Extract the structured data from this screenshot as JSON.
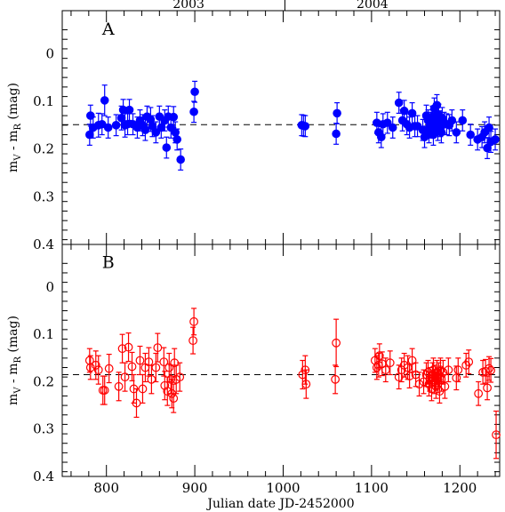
{
  "chart_data": {
    "type": "scatter",
    "xlabel": "Julian date JD-2452000",
    "x_ticks": [
      800,
      900,
      1000,
      1100,
      1200
    ],
    "xlim": [
      750,
      1245
    ],
    "year_labels": [
      {
        "label": "2003",
        "x": 893
      },
      {
        "label": "2004",
        "x": 1101
      }
    ],
    "year_separator_x": 1002,
    "panels": [
      {
        "name": "A",
        "ylabel": "m_V - m_R (mag)",
        "ylabel_main": "m",
        "ylabel_sub1": "V",
        "ylabel_mid": " - m",
        "ylabel_sub2": "R",
        "ylabel_units": " (mag)",
        "ylim": [
          0.4,
          -0.09
        ],
        "y_ticks": [
          "0",
          "0.1",
          "0.2",
          "0.3",
          "0.4"
        ],
        "y_tick_values": [
          0,
          0.1,
          0.2,
          0.3,
          0.4
        ],
        "mean": 0.149,
        "marker": "filled-circle",
        "color": "#0000ff",
        "points": [
          [
            781,
            0.17,
            0.022
          ],
          [
            782,
            0.13,
            0.022
          ],
          [
            785,
            0.155,
            0.022
          ],
          [
            791,
            0.15,
            0.025
          ],
          [
            795,
            0.148,
            0.022
          ],
          [
            798,
            0.098,
            0.032
          ],
          [
            802,
            0.155,
            0.022
          ],
          [
            811,
            0.15,
            0.022
          ],
          [
            817,
            0.135,
            0.025
          ],
          [
            819,
            0.118,
            0.022
          ],
          [
            821,
            0.15,
            0.025
          ],
          [
            824,
            0.148,
            0.022
          ],
          [
            826,
            0.118,
            0.022
          ],
          [
            830,
            0.148,
            0.022
          ],
          [
            835,
            0.155,
            0.022
          ],
          [
            838,
            0.14,
            0.022
          ],
          [
            841,
            0.15,
            0.022
          ],
          [
            844,
            0.16,
            0.022
          ],
          [
            846,
            0.132,
            0.022
          ],
          [
            850,
            0.138,
            0.025
          ],
          [
            852,
            0.152,
            0.022
          ],
          [
            856,
            0.165,
            0.022
          ],
          [
            860,
            0.132,
            0.022
          ],
          [
            862,
            0.155,
            0.022
          ],
          [
            866,
            0.14,
            0.022
          ],
          [
            868,
            0.197,
            0.022
          ],
          [
            870,
            0.132,
            0.022
          ],
          [
            873,
            0.155,
            0.022
          ],
          [
            876,
            0.133,
            0.022
          ],
          [
            878,
            0.165,
            0.022
          ],
          [
            880,
            0.18,
            0.022
          ],
          [
            884,
            0.222,
            0.022
          ],
          [
            899,
            0.122,
            0.022
          ],
          [
            900,
            0.08,
            0.022
          ],
          [
            1021,
            0.15,
            0.022
          ],
          [
            1023,
            0.151,
            0.022
          ],
          [
            1025,
            0.152,
            0.022
          ],
          [
            1060,
            0.168,
            0.022
          ],
          [
            1061,
            0.125,
            0.022
          ],
          [
            1106,
            0.145,
            0.022
          ],
          [
            1108,
            0.165,
            0.022
          ],
          [
            1111,
            0.175,
            0.022
          ],
          [
            1113,
            0.148,
            0.022
          ],
          [
            1118,
            0.145,
            0.022
          ],
          [
            1124,
            0.155,
            0.022
          ],
          [
            1131,
            0.103,
            0.022
          ],
          [
            1135,
            0.14,
            0.022
          ],
          [
            1137,
            0.12,
            0.022
          ],
          [
            1140,
            0.148,
            0.022
          ],
          [
            1143,
            0.155,
            0.022
          ],
          [
            1146,
            0.125,
            0.022
          ],
          [
            1149,
            0.152,
            0.022
          ],
          [
            1152,
            0.152,
            0.022
          ],
          [
            1158,
            0.16,
            0.022
          ],
          [
            1160,
            0.175,
            0.022
          ],
          [
            1162,
            0.13,
            0.022
          ],
          [
            1164,
            0.14,
            0.022
          ],
          [
            1165,
            0.165,
            0.022
          ],
          [
            1166,
            0.155,
            0.022
          ],
          [
            1167,
            0.145,
            0.022
          ],
          [
            1168,
            0.15,
            0.022
          ],
          [
            1169,
            0.132,
            0.022
          ],
          [
            1170,
            0.17,
            0.022
          ],
          [
            1171,
            0.115,
            0.022
          ],
          [
            1172,
            0.138,
            0.022
          ],
          [
            1173,
            0.15,
            0.022
          ],
          [
            1174,
            0.108,
            0.022
          ],
          [
            1175,
            0.16,
            0.022
          ],
          [
            1176,
            0.128,
            0.022
          ],
          [
            1177,
            0.142,
            0.022
          ],
          [
            1178,
            0.152,
            0.022
          ],
          [
            1179,
            0.165,
            0.022
          ],
          [
            1180,
            0.135,
            0.022
          ],
          [
            1182,
            0.145,
            0.022
          ],
          [
            1185,
            0.148,
            0.022
          ],
          [
            1188,
            0.15,
            0.022
          ],
          [
            1191,
            0.14,
            0.022
          ],
          [
            1196,
            0.165,
            0.022
          ],
          [
            1203,
            0.14,
            0.022
          ],
          [
            1212,
            0.17,
            0.022
          ],
          [
            1220,
            0.18,
            0.022
          ],
          [
            1225,
            0.175,
            0.022
          ],
          [
            1228,
            0.165,
            0.022
          ],
          [
            1231,
            0.198,
            0.022
          ],
          [
            1233,
            0.155,
            0.022
          ],
          [
            1235,
            0.185,
            0.022
          ],
          [
            1240,
            0.18,
            0.022
          ]
        ]
      },
      {
        "name": "B",
        "ylabel": "m_V - m_R (mag)",
        "ylabel_main": "m",
        "ylabel_sub1": "V",
        "ylabel_mid": " - m",
        "ylabel_sub2": "R",
        "ylabel_units": " (mag)",
        "ylim": [
          0.4,
          -0.09
        ],
        "y_ticks": [
          "0",
          "0.1",
          "0.2",
          "0.3",
          "0.4"
        ],
        "y_tick_values": [
          0,
          0.1,
          0.2,
          0.3,
          0.4
        ],
        "mean": 0.185,
        "marker": "open-circle",
        "color": "#ff0000",
        "points": [
          [
            781,
            0.155,
            0.025
          ],
          [
            782,
            0.17,
            0.025
          ],
          [
            788,
            0.165,
            0.03
          ],
          [
            791,
            0.175,
            0.03
          ],
          [
            796,
            0.218,
            0.03
          ],
          [
            798,
            0.218,
            0.03
          ],
          [
            803,
            0.172,
            0.03
          ],
          [
            814,
            0.21,
            0.03
          ],
          [
            818,
            0.13,
            0.03
          ],
          [
            821,
            0.19,
            0.03
          ],
          [
            825,
            0.127,
            0.03
          ],
          [
            829,
            0.168,
            0.03
          ],
          [
            831,
            0.215,
            0.03
          ],
          [
            834,
            0.245,
            0.03
          ],
          [
            838,
            0.155,
            0.03
          ],
          [
            841,
            0.215,
            0.03
          ],
          [
            844,
            0.17,
            0.03
          ],
          [
            848,
            0.158,
            0.03
          ],
          [
            851,
            0.195,
            0.03
          ],
          [
            856,
            0.17,
            0.03
          ],
          [
            858,
            0.128,
            0.03
          ],
          [
            865,
            0.158,
            0.03
          ],
          [
            866,
            0.208,
            0.03
          ],
          [
            869,
            0.22,
            0.03
          ],
          [
            871,
            0.17,
            0.03
          ],
          [
            873,
            0.195,
            0.03
          ],
          [
            874,
            0.225,
            0.03
          ],
          [
            876,
            0.235,
            0.03
          ],
          [
            877,
            0.16,
            0.03
          ],
          [
            879,
            0.195,
            0.03
          ],
          [
            883,
            0.19,
            0.03
          ],
          [
            898,
            0.113,
            0.028
          ],
          [
            899,
            0.073,
            0.028
          ],
          [
            1022,
            0.185,
            0.03
          ],
          [
            1025,
            0.175,
            0.03
          ],
          [
            1026,
            0.205,
            0.03
          ],
          [
            1059,
            0.195,
            0.03
          ],
          [
            1060,
            0.118,
            0.05
          ],
          [
            1104,
            0.155,
            0.025
          ],
          [
            1106,
            0.17,
            0.025
          ],
          [
            1108,
            0.165,
            0.025
          ],
          [
            1109,
            0.145,
            0.025
          ],
          [
            1112,
            0.162,
            0.025
          ],
          [
            1116,
            0.175,
            0.025
          ],
          [
            1121,
            0.16,
            0.025
          ],
          [
            1131,
            0.19,
            0.025
          ],
          [
            1134,
            0.175,
            0.025
          ],
          [
            1137,
            0.165,
            0.025
          ],
          [
            1141,
            0.17,
            0.025
          ],
          [
            1143,
            0.188,
            0.025
          ],
          [
            1146,
            0.155,
            0.025
          ],
          [
            1150,
            0.185,
            0.025
          ],
          [
            1154,
            0.205,
            0.025
          ],
          [
            1159,
            0.2,
            0.025
          ],
          [
            1162,
            0.185,
            0.025
          ],
          [
            1164,
            0.18,
            0.025
          ],
          [
            1165,
            0.205,
            0.025
          ],
          [
            1166,
            0.195,
            0.025
          ],
          [
            1168,
            0.215,
            0.025
          ],
          [
            1169,
            0.185,
            0.025
          ],
          [
            1170,
            0.175,
            0.025
          ],
          [
            1171,
            0.2,
            0.025
          ],
          [
            1172,
            0.19,
            0.025
          ],
          [
            1173,
            0.21,
            0.025
          ],
          [
            1174,
            0.18,
            0.025
          ],
          [
            1175,
            0.198,
            0.025
          ],
          [
            1176,
            0.185,
            0.025
          ],
          [
            1177,
            0.22,
            0.025
          ],
          [
            1178,
            0.175,
            0.025
          ],
          [
            1179,
            0.195,
            0.025
          ],
          [
            1181,
            0.18,
            0.025
          ],
          [
            1183,
            0.21,
            0.025
          ],
          [
            1187,
            0.175,
            0.025
          ],
          [
            1196,
            0.192,
            0.025
          ],
          [
            1198,
            0.175,
            0.025
          ],
          [
            1207,
            0.165,
            0.025
          ],
          [
            1210,
            0.158,
            0.025
          ],
          [
            1221,
            0.225,
            0.025
          ],
          [
            1226,
            0.18,
            0.025
          ],
          [
            1229,
            0.178,
            0.025
          ],
          [
            1231,
            0.213,
            0.025
          ],
          [
            1233,
            0.172,
            0.025
          ],
          [
            1235,
            0.176,
            0.025
          ],
          [
            1241,
            0.312,
            0.05
          ]
        ]
      }
    ]
  }
}
